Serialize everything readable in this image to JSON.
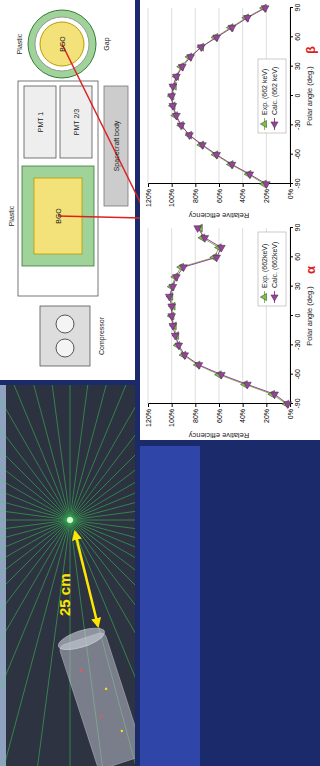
{
  "chart_data": [
    {
      "type": "line",
      "x": [
        -90,
        -80,
        -70,
        -60,
        -50,
        -40,
        -30,
        -20,
        -10,
        0,
        10,
        20,
        30,
        40,
        50,
        60,
        70,
        80,
        90
      ],
      "xlim": [
        -90,
        90
      ],
      "xticks": [
        -90,
        -60,
        -30,
        0,
        30,
        60,
        90
      ],
      "ylim": [
        0,
        120
      ],
      "yticks": [
        {
          "value": 0,
          "label": "0%"
        },
        {
          "value": 20,
          "label": "20%"
        },
        {
          "value": 40,
          "label": "40%"
        },
        {
          "value": 60,
          "label": "60%"
        },
        {
          "value": 80,
          "label": "80%"
        },
        {
          "value": 100,
          "label": "100%"
        },
        {
          "value": 120,
          "label": "120%"
        }
      ],
      "x_label": "Polar angle (deg.)",
      "y_label": "Relative efficiency",
      "annotation": "α",
      "grid": true,
      "legend": "lower right",
      "series": [
        {
          "name": "Exp. (662keV)",
          "color": "#7cc243",
          "marker": "triangle",
          "values": [
            3,
            15,
            38,
            60,
            78,
            90,
            95,
            96,
            98,
            100,
            99,
            101,
            100,
            97,
            92,
            64,
            60,
            74,
            76
          ]
        },
        {
          "name": "Calc. (662keV)",
          "color": "#9b3fa0",
          "marker": "triangle-left",
          "values": [
            2,
            13,
            36,
            58,
            77,
            89,
            94,
            97,
            99,
            100,
            100,
            102,
            99,
            96,
            90,
            62,
            58,
            72,
            78
          ]
        }
      ]
    },
    {
      "type": "line",
      "x": [
        -90,
        -80,
        -70,
        -60,
        -50,
        -40,
        -30,
        -20,
        -10,
        0,
        10,
        20,
        30,
        40,
        50,
        60,
        70,
        80,
        90
      ],
      "xlim": [
        -90,
        90
      ],
      "xticks": [
        -90,
        -60,
        -30,
        0,
        30,
        60,
        90
      ],
      "ylim": [
        0,
        120
      ],
      "yticks": [
        {
          "value": 0,
          "label": "0%"
        },
        {
          "value": 20,
          "label": "20%"
        },
        {
          "value": 40,
          "label": "40%"
        },
        {
          "value": 60,
          "label": "60%"
        },
        {
          "value": 80,
          "label": "80%"
        },
        {
          "value": 100,
          "label": "100%"
        },
        {
          "value": 120,
          "label": "120%"
        }
      ],
      "x_label": "Polar angle (deg.)",
      "y_label": "Relative efficiency",
      "annotation": "β",
      "grid": true,
      "legend": "lower center",
      "series": [
        {
          "name": "Exp. (662 keV)",
          "color": "#7cc243",
          "marker": "triangle",
          "values": [
            22,
            35,
            50,
            63,
            75,
            85,
            92,
            97,
            99,
            100,
            98,
            96,
            92,
            85,
            75,
            63,
            50,
            37,
            22
          ]
        },
        {
          "name": "Calc. (662 keV)",
          "color": "#9b3fa0",
          "marker": "triangle-left",
          "values": [
            20,
            34,
            49,
            62,
            74,
            85,
            92,
            96,
            99,
            100,
            99,
            96,
            91,
            84,
            75,
            62,
            49,
            36,
            21
          ]
        }
      ]
    }
  ],
  "screenshot": {
    "scale_label": "25 cm"
  },
  "diagram": {
    "labels": [
      "Compressor",
      "Plastic",
      "BGO",
      "PMT 1",
      "PMT 2/3",
      "Spacecraft body",
      "Plastic",
      "Gap",
      "BGO"
    ]
  }
}
